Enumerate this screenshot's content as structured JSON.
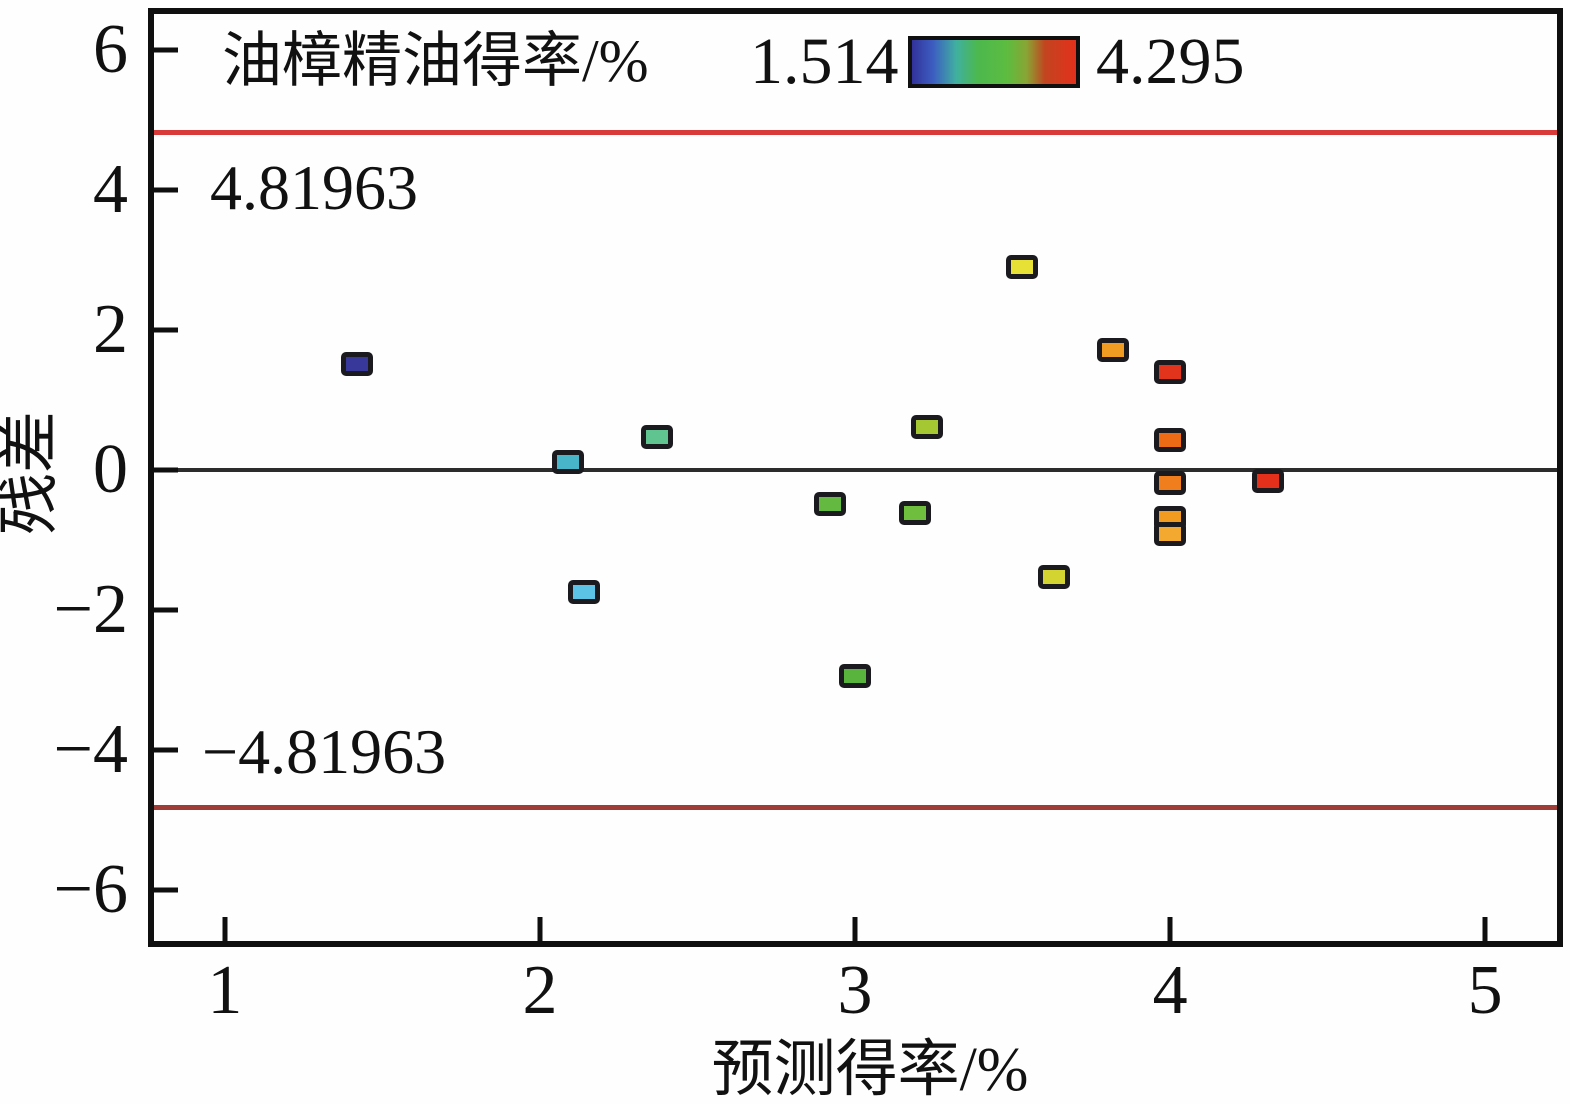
{
  "chart_data": {
    "type": "scatter",
    "marker": "square",
    "title": "油樟精油得率/%",
    "xlabel": "预测得率/%",
    "ylabel": "残差",
    "xlim": [
      0.775,
      5.228
    ],
    "ylim": [
      -6.73,
      6.51
    ],
    "grid": false,
    "legend_position": "top",
    "x_ticks": [
      {
        "v": 1,
        "label": "1"
      },
      {
        "v": 2,
        "label": "2"
      },
      {
        "v": 3,
        "label": "3"
      },
      {
        "v": 4,
        "label": "4"
      },
      {
        "v": 5,
        "label": "5"
      }
    ],
    "y_ticks": [
      {
        "v": 6,
        "label": "6"
      },
      {
        "v": 4,
        "label": "4"
      },
      {
        "v": 2,
        "label": "2"
      },
      {
        "v": 0,
        "label": "0"
      },
      {
        "v": -2,
        "label": "−2"
      },
      {
        "v": -4,
        "label": "−4"
      },
      {
        "v": -6,
        "label": "−6"
      }
    ],
    "reference_lines": [
      {
        "y": 4.81963,
        "color": "#d83a3a",
        "width": 5,
        "label": "4.81963"
      },
      {
        "y": 0,
        "color": "#2c2c2c",
        "width": 4,
        "label": ""
      },
      {
        "y": -4.81963,
        "color": "#9e3c38",
        "width": 5,
        "label": "−4.81963"
      }
    ],
    "colorbar": {
      "title": "油樟精油得率/%",
      "min_label": "1.514",
      "max_label": "4.295",
      "gradient_stops": [
        {
          "pos": 0,
          "color": "#32329b"
        },
        {
          "pos": 13,
          "color": "#3c5ec2"
        },
        {
          "pos": 27,
          "color": "#40b0a0"
        },
        {
          "pos": 40,
          "color": "#4cb84e"
        },
        {
          "pos": 58,
          "color": "#5dbc40"
        },
        {
          "pos": 70,
          "color": "#8aa434"
        },
        {
          "pos": 81,
          "color": "#c24520"
        },
        {
          "pos": 100,
          "color": "#e3301c"
        }
      ]
    },
    "points": [
      {
        "x": 1.42,
        "y": 1.51,
        "color": "#38389a"
      },
      {
        "x": 2.09,
        "y": 0.11,
        "color": "#49b5c9"
      },
      {
        "x": 2.14,
        "y": -1.74,
        "color": "#5cc3e6"
      },
      {
        "x": 2.37,
        "y": 0.47,
        "color": "#5fc48f"
      },
      {
        "x": 2.92,
        "y": -0.49,
        "color": "#64ba40"
      },
      {
        "x": 3.0,
        "y": -2.94,
        "color": "#58b43c"
      },
      {
        "x": 3.19,
        "y": -0.61,
        "color": "#6fbe3e"
      },
      {
        "x": 3.23,
        "y": 0.61,
        "color": "#a5c832"
      },
      {
        "x": 3.53,
        "y": 2.89,
        "color": "#e7e135"
      },
      {
        "x": 3.63,
        "y": -1.53,
        "color": "#d3d332"
      },
      {
        "x": 3.82,
        "y": 1.71,
        "color": "#f09b21"
      },
      {
        "x": 4.0,
        "y": 1.39,
        "color": "#e2331c"
      },
      {
        "x": 4.0,
        "y": 0.43,
        "color": "#ee6b16"
      },
      {
        "x": 4.0,
        "y": -0.19,
        "color": "#f07e1d"
      },
      {
        "x": 4.0,
        "y": -0.69,
        "color": "#f29b21"
      },
      {
        "x": 4.0,
        "y": -0.91,
        "color": "#f3a930"
      },
      {
        "x": 4.31,
        "y": -0.16,
        "color": "#e5301c"
      }
    ]
  }
}
